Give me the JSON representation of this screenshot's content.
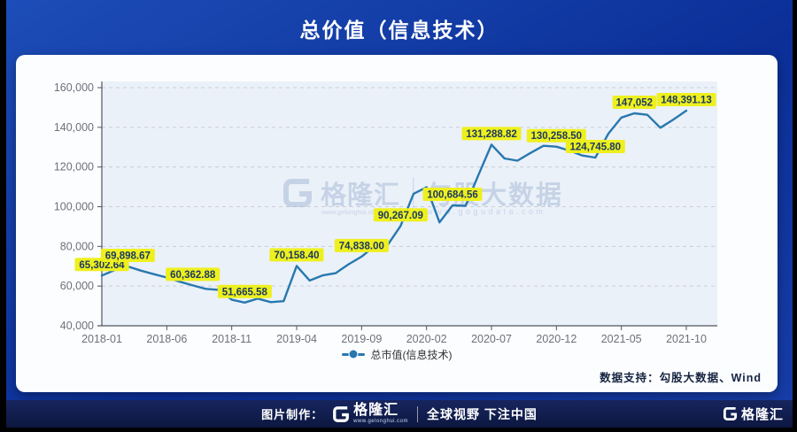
{
  "title": "总价值（信息技术）",
  "legend": {
    "label": "总市值(信息技术)"
  },
  "support": {
    "text": "数据支持：勾股大数据、Wind"
  },
  "footer": {
    "made_by": "图片制作：",
    "brand": "格隆汇",
    "brand_url": "www.gelonghui.com",
    "slogan": "全球视野 下注中国"
  },
  "watermark": {
    "brand": "格隆汇",
    "brand_url": "www.gelonghui.com",
    "partner": "勾股大数据",
    "partner_url": "www.gogudata.com"
  },
  "colors": {
    "line": "#2878af",
    "label_bg": "#eef01e",
    "label_text": "#1d3a60",
    "plot_bg": "#ebf1f9",
    "grid": "#c8cdd6",
    "axis": "#51555e",
    "tick_text": "#6e7079",
    "watermark": "#a9bcd8",
    "header_bg": "#0d35a0",
    "footer_bg": "#101c4f"
  },
  "chart_data": {
    "type": "line",
    "title": "总价值（信息技术）",
    "series_name": "总市值(信息技术)",
    "xlabel": "",
    "ylabel": "",
    "grid": true,
    "legend_position": "bottom-center",
    "ylim": [
      40000,
      160000
    ],
    "ytick_values": [
      40000,
      60000,
      80000,
      100000,
      120000,
      140000,
      160000
    ],
    "ytick_labels": [
      "40,000",
      "60,000",
      "80,000",
      "100,000",
      "120,000",
      "140,000",
      "160,000"
    ],
    "xtick_indices": [
      0,
      5,
      10,
      15,
      20,
      25,
      30,
      35,
      40,
      45
    ],
    "xtick_labels": [
      "2018-01",
      "2018-06",
      "2018-11",
      "2019-04",
      "2019-09",
      "2020-02",
      "2020-07",
      "2020-12",
      "2021-05",
      "2021-10"
    ],
    "x": [
      "2018-01",
      "2018-02",
      "2018-03",
      "2018-04",
      "2018-05",
      "2018-06",
      "2018-07",
      "2018-08",
      "2018-09",
      "2018-10",
      "2018-11",
      "2018-12",
      "2019-01",
      "2019-02",
      "2019-03",
      "2019-04",
      "2019-05",
      "2019-06",
      "2019-07",
      "2019-08",
      "2019-09",
      "2019-10",
      "2019-11",
      "2019-12",
      "2020-01",
      "2020-02",
      "2020-03",
      "2020-04",
      "2020-05",
      "2020-06",
      "2020-07",
      "2020-08",
      "2020-09",
      "2020-10",
      "2020-11",
      "2020-12",
      "2021-01",
      "2021-02",
      "2021-03",
      "2021-04",
      "2021-05",
      "2021-06",
      "2021-07",
      "2021-08",
      "2021-09",
      "2021-10"
    ],
    "values": [
      65302.64,
      68100,
      69898.67,
      67800,
      66000,
      64300,
      62200,
      60362.88,
      58600,
      58100,
      53100,
      51665.58,
      53700,
      51900,
      52400,
      70158.4,
      62800,
      65400,
      66500,
      71000,
      74838.0,
      80200,
      80700,
      90267.09,
      106500,
      109800,
      92100,
      100684.56,
      100400,
      116000,
      131288.82,
      124300,
      123200,
      127100,
      130700,
      130258.5,
      128300,
      125800,
      124745.8,
      136800,
      144900,
      147052,
      146300,
      139800,
      143900,
      148391.13
    ],
    "labeled_points": [
      {
        "i": 0,
        "t": "65,302.64"
      },
      {
        "i": 2,
        "t": "69,898.67"
      },
      {
        "i": 7,
        "t": "60,362.88"
      },
      {
        "i": 11,
        "t": "51,665.58"
      },
      {
        "i": 15,
        "t": "70,158.40"
      },
      {
        "i": 20,
        "t": "74,838.00"
      },
      {
        "i": 23,
        "t": "90,267.09"
      },
      {
        "i": 27,
        "t": "100,684.56"
      },
      {
        "i": 30,
        "t": "131,288.82"
      },
      {
        "i": 35,
        "t": "130,258.50"
      },
      {
        "i": 38,
        "t": "124,745.80"
      },
      {
        "i": 41,
        "t": "147,052"
      },
      {
        "i": 45,
        "t": "148,391.13"
      }
    ]
  }
}
